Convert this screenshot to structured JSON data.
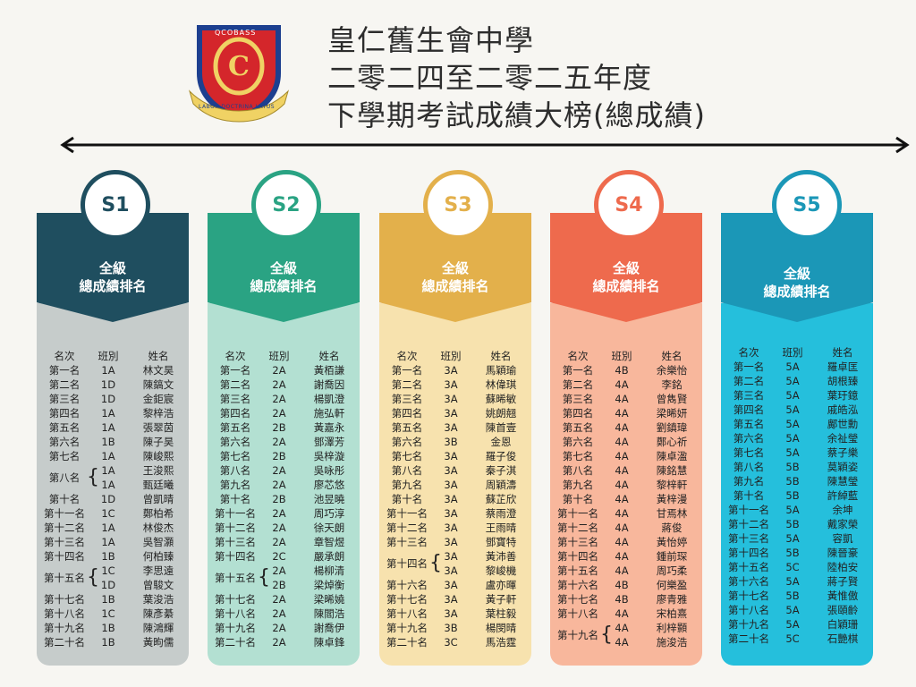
{
  "title": {
    "line1": "皇仁舊生會中學",
    "line2": "二零二四至二零二五年度",
    "line3": "下學期考試成績大榜(總成績)"
  },
  "crest": {
    "text_top": "QCOBASS",
    "text_bottom": "LABOR DOCTRINA LATUS",
    "label": "school-crest"
  },
  "header_labels": {
    "rank": "名次",
    "class": "班別",
    "name": "姓名"
  },
  "columns": [
    {
      "grade": "S1",
      "heading_line1": "全級",
      "heading_line2": "總成績排名",
      "colors": {
        "top": "#1f4e5f",
        "body": "#c6cccb",
        "circle_text": "#1f4e5f",
        "circle_border": "#1f4e5f"
      },
      "rows": [
        {
          "rank": "第一名",
          "class": "1A",
          "name": "林文昊"
        },
        {
          "rank": "第二名",
          "class": "1D",
          "name": "陳鎬文"
        },
        {
          "rank": "第三名",
          "class": "1D",
          "name": "金鉅宸"
        },
        {
          "rank": "第四名",
          "class": "1A",
          "name": "黎梓浩"
        },
        {
          "rank": "第五名",
          "class": "1A",
          "name": "張翠茵"
        },
        {
          "rank": "第六名",
          "class": "1B",
          "name": "陳子昊"
        },
        {
          "rank": "第七名",
          "class": "1A",
          "name": "陳峻熙"
        },
        {
          "rank": "第八名",
          "class": "1A",
          "name": "王浚熙",
          "tie": "start"
        },
        {
          "rank": "",
          "class": "1A",
          "name": "甄廷曦",
          "tie": "end"
        },
        {
          "rank": "第十名",
          "class": "1D",
          "name": "曾凱晴"
        },
        {
          "rank": "第十一名",
          "class": "1C",
          "name": "鄭柏希"
        },
        {
          "rank": "第十二名",
          "class": "1A",
          "name": "林俊杰"
        },
        {
          "rank": "第十三名",
          "class": "1A",
          "name": "吳智灝"
        },
        {
          "rank": "第十四名",
          "class": "1B",
          "name": "何柏臻"
        },
        {
          "rank": "第十五名",
          "class": "1C",
          "name": "李思遠",
          "tie": "start"
        },
        {
          "rank": "",
          "class": "1D",
          "name": "曾駿文",
          "tie": "end"
        },
        {
          "rank": "第十七名",
          "class": "1B",
          "name": "葉浚浩"
        },
        {
          "rank": "第十八名",
          "class": "1C",
          "name": "陳彥綦"
        },
        {
          "rank": "第十九名",
          "class": "1B",
          "name": "陳鴻輝"
        },
        {
          "rank": "第二十名",
          "class": "1B",
          "name": "黃昫儒"
        }
      ]
    },
    {
      "grade": "S2",
      "heading_line1": "全級",
      "heading_line2": "總成績排名",
      "colors": {
        "top": "#2aa383",
        "body": "#b3e0d2",
        "circle_text": "#2aa383",
        "circle_border": "#2aa383"
      },
      "rows": [
        {
          "rank": "第一名",
          "class": "2A",
          "name": "黃栢謙"
        },
        {
          "rank": "第二名",
          "class": "2A",
          "name": "謝喬因"
        },
        {
          "rank": "第三名",
          "class": "2A",
          "name": "楊凱澄"
        },
        {
          "rank": "第四名",
          "class": "2A",
          "name": "施弘軒"
        },
        {
          "rank": "第五名",
          "class": "2B",
          "name": "黃嘉永"
        },
        {
          "rank": "第六名",
          "class": "2A",
          "name": "鄧澤芳"
        },
        {
          "rank": "第七名",
          "class": "2B",
          "name": "吳梓漩"
        },
        {
          "rank": "第八名",
          "class": "2A",
          "name": "吳咏彤"
        },
        {
          "rank": "第九名",
          "class": "2A",
          "name": "廖芯悠"
        },
        {
          "rank": "第十名",
          "class": "2B",
          "name": "池昱曉"
        },
        {
          "rank": "第十一名",
          "class": "2A",
          "name": "周巧淳"
        },
        {
          "rank": "第十二名",
          "class": "2A",
          "name": "徐天朗"
        },
        {
          "rank": "第十三名",
          "class": "2A",
          "name": "章智煜"
        },
        {
          "rank": "第十四名",
          "class": "2C",
          "name": "嚴承朗"
        },
        {
          "rank": "第十五名",
          "class": "2A",
          "name": "楊柳清",
          "tie": "start"
        },
        {
          "rank": "",
          "class": "2B",
          "name": "梁焯衡",
          "tie": "end"
        },
        {
          "rank": "第十七名",
          "class": "2A",
          "name": "梁晞嬈"
        },
        {
          "rank": "第十八名",
          "class": "2A",
          "name": "陳閻浩"
        },
        {
          "rank": "第十九名",
          "class": "2A",
          "name": "謝喬伊"
        },
        {
          "rank": "第二十名",
          "class": "2A",
          "name": "陳卓鋒"
        }
      ]
    },
    {
      "grade": "S3",
      "heading_line1": "全級",
      "heading_line2": "總成績排名",
      "colors": {
        "top": "#e3b04b",
        "body": "#f7e2ae",
        "circle_text": "#e3b04b",
        "circle_border": "#e3b04b"
      },
      "rows": [
        {
          "rank": "第一名",
          "class": "3A",
          "name": "馬穎瑜"
        },
        {
          "rank": "第二名",
          "class": "3A",
          "name": "林偉琪"
        },
        {
          "rank": "第三名",
          "class": "3A",
          "name": "蘇晞敏"
        },
        {
          "rank": "第四名",
          "class": "3A",
          "name": "姚朗翹"
        },
        {
          "rank": "第五名",
          "class": "3A",
          "name": "陳首壹"
        },
        {
          "rank": "第六名",
          "class": "3B",
          "name": "金恩"
        },
        {
          "rank": "第七名",
          "class": "3A",
          "name": "羅子俊"
        },
        {
          "rank": "第八名",
          "class": "3A",
          "name": "秦子淇"
        },
        {
          "rank": "第九名",
          "class": "3A",
          "name": "周穎濤"
        },
        {
          "rank": "第十名",
          "class": "3A",
          "name": "蘇芷欣"
        },
        {
          "rank": "第十一名",
          "class": "3A",
          "name": "蔡雨澄"
        },
        {
          "rank": "第十二名",
          "class": "3A",
          "name": "王雨晴"
        },
        {
          "rank": "第十三名",
          "class": "3A",
          "name": "鄧寶特"
        },
        {
          "rank": "第十四名",
          "class": "3A",
          "name": "黃沛善",
          "tie": "start"
        },
        {
          "rank": "",
          "class": "3A",
          "name": "黎峻機",
          "tie": "end"
        },
        {
          "rank": "第十六名",
          "class": "3A",
          "name": "盧亦暉"
        },
        {
          "rank": "第十七名",
          "class": "3A",
          "name": "黃子軒"
        },
        {
          "rank": "第十八名",
          "class": "3A",
          "name": "葉柱毅"
        },
        {
          "rank": "第十九名",
          "class": "3B",
          "name": "楊閔晴"
        },
        {
          "rank": "第二十名",
          "class": "3C",
          "name": "馬浩霆"
        }
      ]
    },
    {
      "grade": "S4",
      "heading_line1": "全級",
      "heading_line2": "總成績排名",
      "colors": {
        "top": "#ee6a4d",
        "body": "#f8b79c",
        "circle_text": "#ee6a4d",
        "circle_border": "#ee6a4d"
      },
      "rows": [
        {
          "rank": "第一名",
          "class": "4B",
          "name": "余樂怡"
        },
        {
          "rank": "第二名",
          "class": "4A",
          "name": "李銘"
        },
        {
          "rank": "第三名",
          "class": "4A",
          "name": "曾雋賢"
        },
        {
          "rank": "第四名",
          "class": "4A",
          "name": "梁晞妍"
        },
        {
          "rank": "第五名",
          "class": "4A",
          "name": "劉鎮瑋"
        },
        {
          "rank": "第六名",
          "class": "4A",
          "name": "鄭心祈"
        },
        {
          "rank": "第七名",
          "class": "4A",
          "name": "陳卓溋"
        },
        {
          "rank": "第八名",
          "class": "4A",
          "name": "陳銘慧"
        },
        {
          "rank": "第九名",
          "class": "4A",
          "name": "黎梓軒"
        },
        {
          "rank": "第十名",
          "class": "4A",
          "name": "黃梓漫"
        },
        {
          "rank": "第十一名",
          "class": "4A",
          "name": "甘焉林"
        },
        {
          "rank": "第十二名",
          "class": "4A",
          "name": "蔣俊"
        },
        {
          "rank": "第十三名",
          "class": "4A",
          "name": "黃怡婷"
        },
        {
          "rank": "第十四名",
          "class": "4A",
          "name": "鍾前琛"
        },
        {
          "rank": "第十五名",
          "class": "4A",
          "name": "周巧柔"
        },
        {
          "rank": "第十六名",
          "class": "4B",
          "name": "何樂盈"
        },
        {
          "rank": "第十七名",
          "class": "4B",
          "name": "廖青雅"
        },
        {
          "rank": "第十八名",
          "class": "4A",
          "name": "宋柏熹"
        },
        {
          "rank": "第十九名",
          "class": "4A",
          "name": "利梓顥",
          "tie": "start"
        },
        {
          "rank": "",
          "class": "4A",
          "name": "施浚浩",
          "tie": "end"
        }
      ]
    },
    {
      "grade": "S5",
      "heading_line1": "全級",
      "heading_line2": "總成績排名",
      "colors": {
        "top": "#1b97b7",
        "body": "#25bfdc",
        "circle_text": "#1b97b7",
        "circle_border": "#1b97b7"
      },
      "rows": [
        {
          "rank": "第一名",
          "class": "5A",
          "name": "羅卓匡"
        },
        {
          "rank": "第二名",
          "class": "5A",
          "name": "胡根臻"
        },
        {
          "rank": "第三名",
          "class": "5A",
          "name": "葉玗鐿"
        },
        {
          "rank": "第四名",
          "class": "5A",
          "name": "戚皓泓"
        },
        {
          "rank": "第五名",
          "class": "5A",
          "name": "鄺世勳"
        },
        {
          "rank": "第六名",
          "class": "5A",
          "name": "余祉瑩"
        },
        {
          "rank": "第七名",
          "class": "5A",
          "name": "蔡子樂"
        },
        {
          "rank": "第八名",
          "class": "5B",
          "name": "莫穎姿"
        },
        {
          "rank": "第九名",
          "class": "5B",
          "name": "陳慧瑩"
        },
        {
          "rank": "第十名",
          "class": "5B",
          "name": "許綽藍"
        },
        {
          "rank": "第十一名",
          "class": "5A",
          "name": "余坤"
        },
        {
          "rank": "第十二名",
          "class": "5B",
          "name": "戴家榮"
        },
        {
          "rank": "第十三名",
          "class": "5A",
          "name": "容凱"
        },
        {
          "rank": "第十四名",
          "class": "5B",
          "name": "陳晉豪"
        },
        {
          "rank": "第十五名",
          "class": "5C",
          "name": "陸柏安"
        },
        {
          "rank": "第十六名",
          "class": "5A",
          "name": "蔣子賢"
        },
        {
          "rank": "第十七名",
          "class": "5B",
          "name": "黃惟傲"
        },
        {
          "rank": "第十八名",
          "class": "5A",
          "name": "張頤齡"
        },
        {
          "rank": "第十九名",
          "class": "5A",
          "name": "白穎珊"
        },
        {
          "rank": "第二十名",
          "class": "5C",
          "name": "石艷棋"
        }
      ]
    }
  ]
}
